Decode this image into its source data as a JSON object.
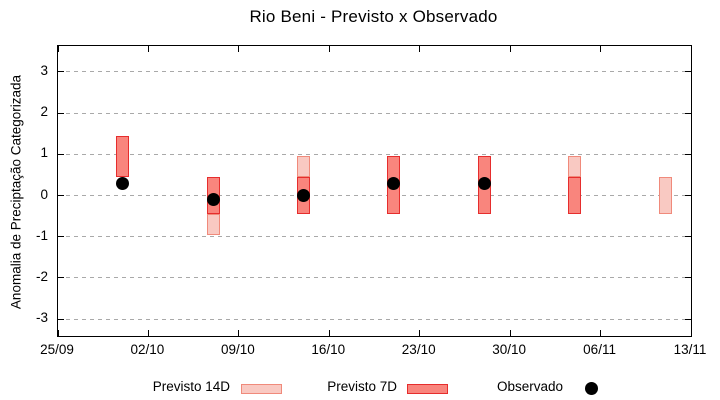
{
  "title": "Rio Beni - Previsto x Observado",
  "y_axis": {
    "label": "Anomalia de Preciptação Categorizada",
    "tick_values": [
      3,
      2,
      1,
      0,
      -1,
      -2,
      -3
    ]
  },
  "x_axis": {
    "tick_labels": [
      "25/09",
      "02/10",
      "09/10",
      "16/10",
      "23/10",
      "30/10",
      "06/11",
      "13/11"
    ],
    "tick_day_offsets": [
      0,
      7,
      14,
      21,
      28,
      35,
      42,
      49
    ]
  },
  "legend": {
    "previsto_14d": "Previsto 14D",
    "previsto_7d": "Previsto 7D",
    "observado": "Observado"
  },
  "colors": {
    "previsto_14d_fill": "#f9c9c2",
    "previsto_14d_border": "#f08a7b",
    "previsto_7d_fill": "#f9857d",
    "previsto_7d_border": "#e62d2d",
    "observado_dot": "#000000",
    "gridline": "#a9a9a9",
    "axis": "#000000",
    "background": "#ffffff"
  },
  "chart_data": {
    "type": "bar",
    "subtype": "interval-bars-with-scatter-overlay",
    "title": "Rio Beni - Previsto x Observado",
    "xlabel": "",
    "ylabel": "Anomalia de Preciptação Categorizada",
    "ylim": [
      -3.6,
      3.6
    ],
    "y_tick_values": [
      3,
      2,
      1,
      0,
      -1,
      -2,
      -3
    ],
    "x_tick_labels": [
      "25/09",
      "02/10",
      "09/10",
      "16/10",
      "23/10",
      "30/10",
      "06/11",
      "13/11"
    ],
    "grid": "horizontal-dashed-only",
    "legend_position": "bottom-outside",
    "series": [
      {
        "name": "Previsto 14D",
        "type": "interval-bar",
        "color": "#f9c9c2"
      },
      {
        "name": "Previsto 7D",
        "type": "interval-bar",
        "color": "#f9857d"
      },
      {
        "name": "Observado",
        "type": "scatter",
        "color": "#000000"
      }
    ],
    "points": [
      {
        "date": "30/09",
        "day_offset": 5,
        "previsto_14d_visible": null,
        "previsto_7d": [
          0.45,
          1.45
        ],
        "observado": 0.3
      },
      {
        "date": "07/10",
        "day_offset": 12,
        "previsto_14d_visible": [
          -0.95,
          -0.45
        ],
        "previsto_7d": [
          -0.45,
          0.45
        ],
        "observado": -0.1
      },
      {
        "date": "14/10",
        "day_offset": 19,
        "previsto_14d_visible": [
          0.45,
          0.95
        ],
        "previsto_7d": [
          -0.45,
          0.45
        ],
        "observado": 0.0
      },
      {
        "date": "21/10",
        "day_offset": 26,
        "previsto_14d_visible": null,
        "previsto_7d": [
          -0.45,
          0.95
        ],
        "observado": 0.3
      },
      {
        "date": "28/10",
        "day_offset": 33,
        "previsto_14d_visible": null,
        "previsto_7d": [
          -0.45,
          0.95
        ],
        "observado": 0.3
      },
      {
        "date": "04/11",
        "day_offset": 40,
        "previsto_14d_visible": [
          0.45,
          0.95
        ],
        "previsto_7d": [
          -0.45,
          0.45
        ],
        "observado": null
      },
      {
        "date": "11/11",
        "day_offset": 47,
        "previsto_14d_visible": [
          -0.45,
          0.45
        ],
        "previsto_7d": null,
        "observado": null
      }
    ]
  }
}
